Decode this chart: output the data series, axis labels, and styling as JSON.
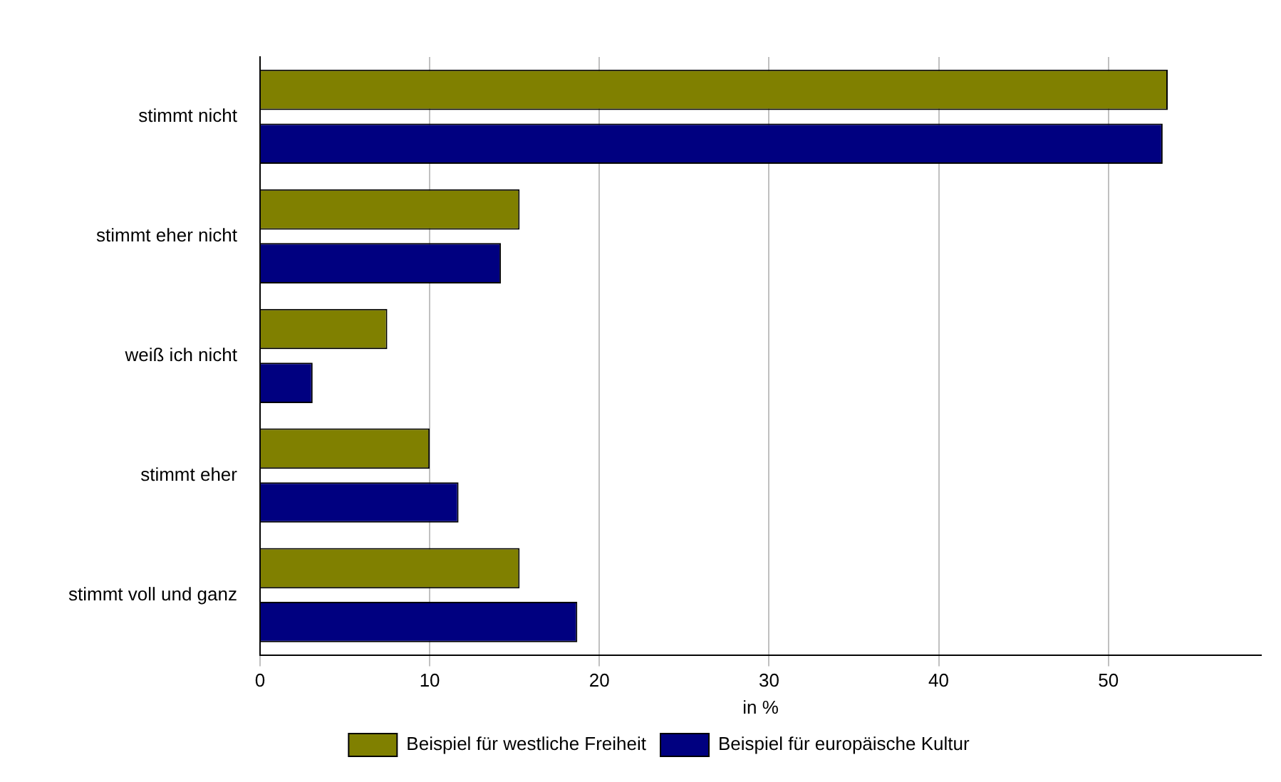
{
  "chart_data": {
    "type": "bar",
    "orientation": "horizontal",
    "categories": [
      "stimmt nicht",
      "stimmt eher nicht",
      "weiß ich nicht",
      "stimmt eher",
      "stimmt voll und ganz"
    ],
    "series": [
      {
        "name": "Beispiel für westliche Freiheit",
        "color": "#808000",
        "values": [
          53.5,
          15.3,
          7.5,
          10.0,
          15.3
        ]
      },
      {
        "name": "Beispiel für europäische Kultur",
        "color": "#000080",
        "values": [
          53.2,
          14.2,
          3.1,
          11.7,
          18.7
        ]
      }
    ],
    "xlabel": "in %",
    "xlim": [
      0,
      59
    ],
    "xticks": [
      0,
      10,
      20,
      30,
      40,
      50
    ],
    "grid": "x",
    "legend": "bottom"
  }
}
